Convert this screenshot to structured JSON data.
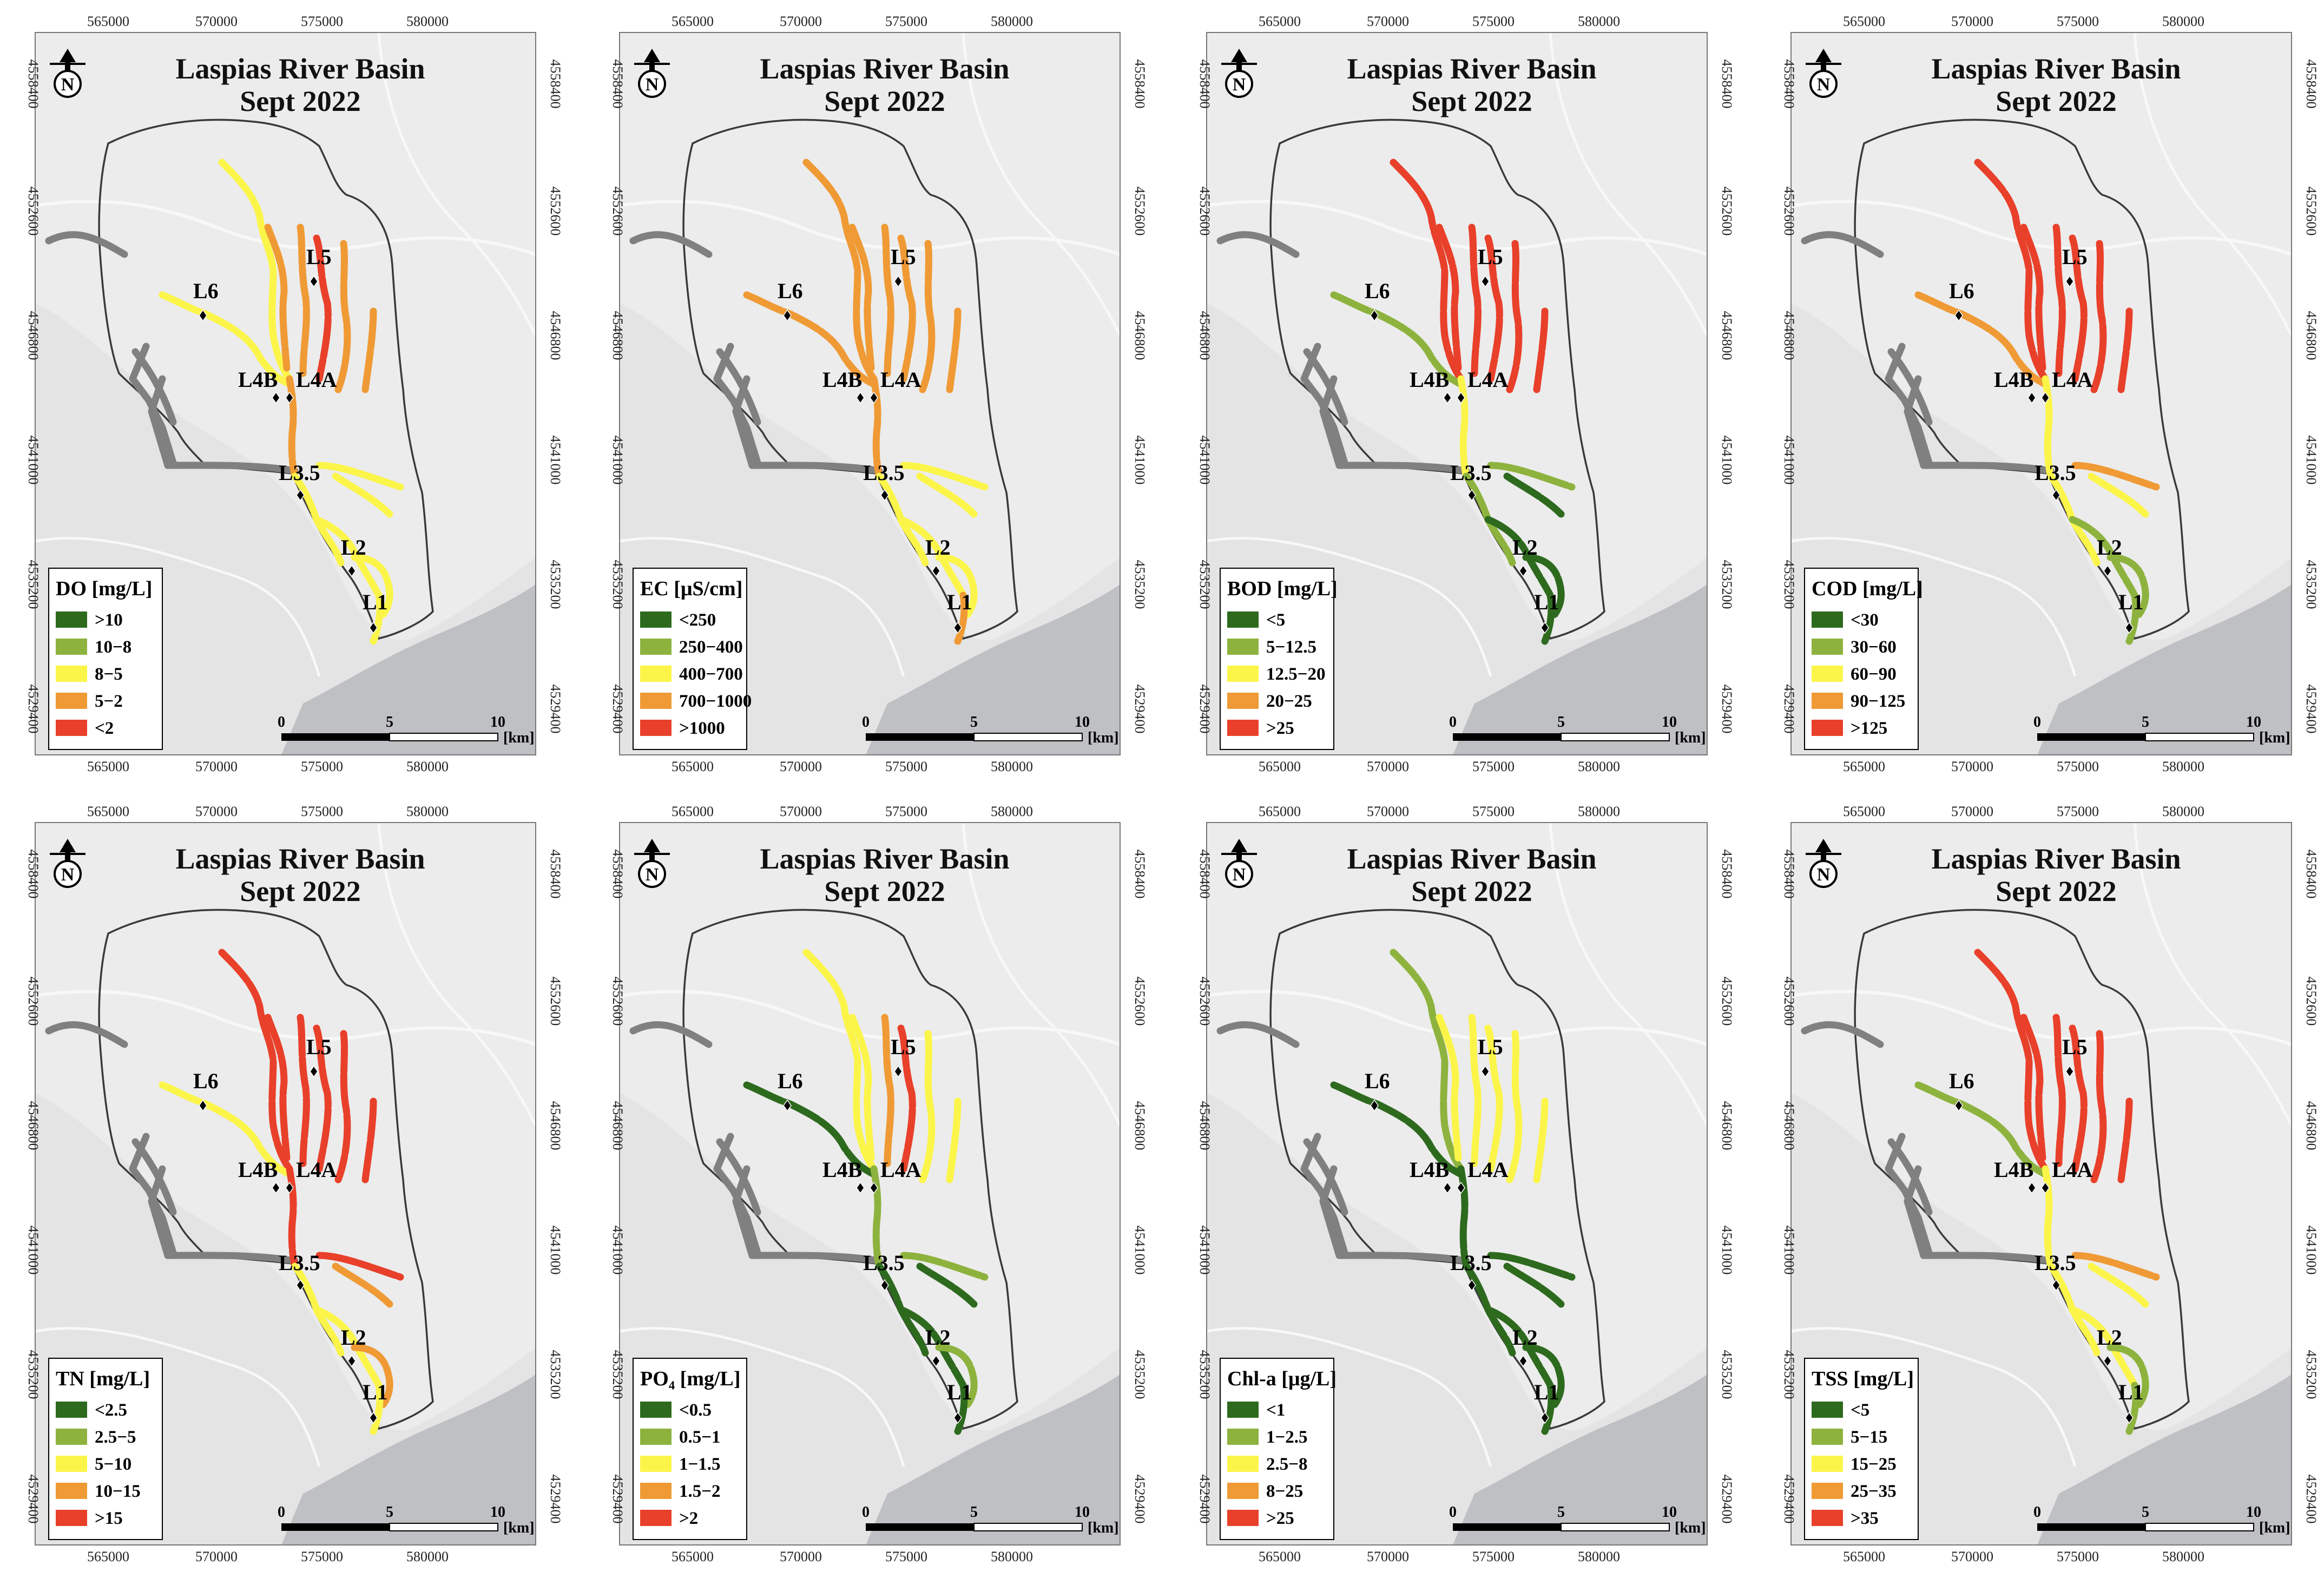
{
  "figure": {
    "title_line1": "Laspias River Basin",
    "title_line2": "Sept 2022",
    "north_label": "N",
    "x_ticks": [
      "565000",
      "570000",
      "575000",
      "580000"
    ],
    "y_ticks": [
      "4558400",
      "4552600",
      "4546800",
      "4541000",
      "4535200",
      "4529400"
    ],
    "scale": {
      "labels": [
        "0",
        "5",
        "10"
      ],
      "unit": "[km]"
    },
    "sites": [
      "L6",
      "L5",
      "L4B",
      "L4A",
      "L3.5",
      "L2",
      "L1"
    ]
  },
  "colors": {
    "class1": "#2d6a1e",
    "class2": "#8db33e",
    "class3": "#fbf54a",
    "class4": "#ef9a35",
    "class5": "#e8402a",
    "untested": "#808080",
    "basemap": "#ececec",
    "sea": "#bfc0c4",
    "boundary": "#3a3a3a"
  },
  "panels": [
    {
      "id": "DO",
      "legend_title": "DO [mg/L]",
      "classes": [
        ">10",
        "10−8",
        "8−5",
        "5−2",
        "<2"
      ],
      "reach_classes": {
        "r_nw": 3,
        "r_n1": 4,
        "r_n2": 4,
        "r_n3": 5,
        "r_n4": 4,
        "r_n5": 4,
        "r_l6": 3,
        "r_main_up": 4,
        "r_main_mid": 3,
        "r_e1": 3,
        "r_e2": 3,
        "r_low": 3,
        "r_delta": 3,
        "r_mouth": 3
      }
    },
    {
      "id": "EC",
      "legend_title": "EC [μS/cm]",
      "classes": [
        "<250",
        "250−400",
        "400−700",
        "700−1000",
        ">1000"
      ],
      "reach_classes": {
        "r_nw": 4,
        "r_n1": 4,
        "r_n2": 4,
        "r_n3": 4,
        "r_n4": 4,
        "r_n5": 4,
        "r_l6": 4,
        "r_main_up": 4,
        "r_main_mid": 3,
        "r_e1": 3,
        "r_e2": 3,
        "r_low": 3,
        "r_delta": 3,
        "r_mouth": 4
      }
    },
    {
      "id": "BOD",
      "legend_title": "BOD [mg/L]",
      "classes": [
        "<5",
        "5−12.5",
        "12.5−20",
        "20−25",
        ">25"
      ],
      "reach_classes": {
        "r_nw": 5,
        "r_n1": 5,
        "r_n2": 5,
        "r_n3": 5,
        "r_n4": 5,
        "r_n5": 5,
        "r_l6": 2,
        "r_main_up": 3,
        "r_main_mid": 2,
        "r_e1": 2,
        "r_e2": 1,
        "r_low": 1,
        "r_delta": 1,
        "r_mouth": 1
      }
    },
    {
      "id": "COD",
      "legend_title": "COD [mg/L]",
      "classes": [
        "<30",
        "30−60",
        "60−90",
        "90−125",
        ">125"
      ],
      "reach_classes": {
        "r_nw": 5,
        "r_n1": 5,
        "r_n2": 5,
        "r_n3": 5,
        "r_n4": 5,
        "r_n5": 5,
        "r_l6": 4,
        "r_main_up": 3,
        "r_main_mid": 3,
        "r_e1": 4,
        "r_e2": 3,
        "r_low": 2,
        "r_delta": 2,
        "r_mouth": 2
      }
    },
    {
      "id": "TN",
      "legend_title": "TN [mg/L]",
      "classes": [
        "<2.5",
        "2.5−5",
        "5−10",
        "10−15",
        ">15"
      ],
      "reach_classes": {
        "r_nw": 5,
        "r_n1": 5,
        "r_n2": 5,
        "r_n3": 5,
        "r_n4": 5,
        "r_n5": 5,
        "r_l6": 3,
        "r_main_up": 5,
        "r_main_mid": 3,
        "r_e1": 5,
        "r_e2": 4,
        "r_low": 3,
        "r_delta": 4,
        "r_mouth": 3
      }
    },
    {
      "id": "PO4",
      "legend_title": "PO₄ [mg/L]",
      "classes": [
        "<0.5",
        "0.5−1",
        "1−1.5",
        "1.5−2",
        ">2"
      ],
      "reach_classes": {
        "r_nw": 3,
        "r_n1": 3,
        "r_n2": 4,
        "r_n3": 5,
        "r_n4": 3,
        "r_n5": 3,
        "r_l6": 1,
        "r_main_up": 2,
        "r_main_mid": 1,
        "r_e1": 2,
        "r_e2": 1,
        "r_low": 1,
        "r_delta": 2,
        "r_mouth": 1
      }
    },
    {
      "id": "CHLA",
      "legend_title": "Chl-a [μg/L]",
      "classes": [
        "<1",
        "1−2.5",
        "2.5−8",
        "8−25",
        ">25"
      ],
      "reach_classes": {
        "r_nw": 2,
        "r_n1": 3,
        "r_n2": 3,
        "r_n3": 3,
        "r_n4": 3,
        "r_n5": 3,
        "r_l6": 1,
        "r_main_up": 1,
        "r_main_mid": 1,
        "r_e1": 1,
        "r_e2": 1,
        "r_low": 1,
        "r_delta": 1,
        "r_mouth": 1
      }
    },
    {
      "id": "TSS",
      "legend_title": "TSS [mg/L]",
      "classes": [
        "<5",
        "5−15",
        "15−25",
        "25−35",
        ">35"
      ],
      "reach_classes": {
        "r_nw": 5,
        "r_n1": 5,
        "r_n2": 5,
        "r_n3": 5,
        "r_n4": 5,
        "r_n5": 5,
        "r_l6": 2,
        "r_main_up": 3,
        "r_main_mid": 3,
        "r_e1": 4,
        "r_e2": 3,
        "r_low": 3,
        "r_delta": 2,
        "r_mouth": 2
      }
    }
  ]
}
